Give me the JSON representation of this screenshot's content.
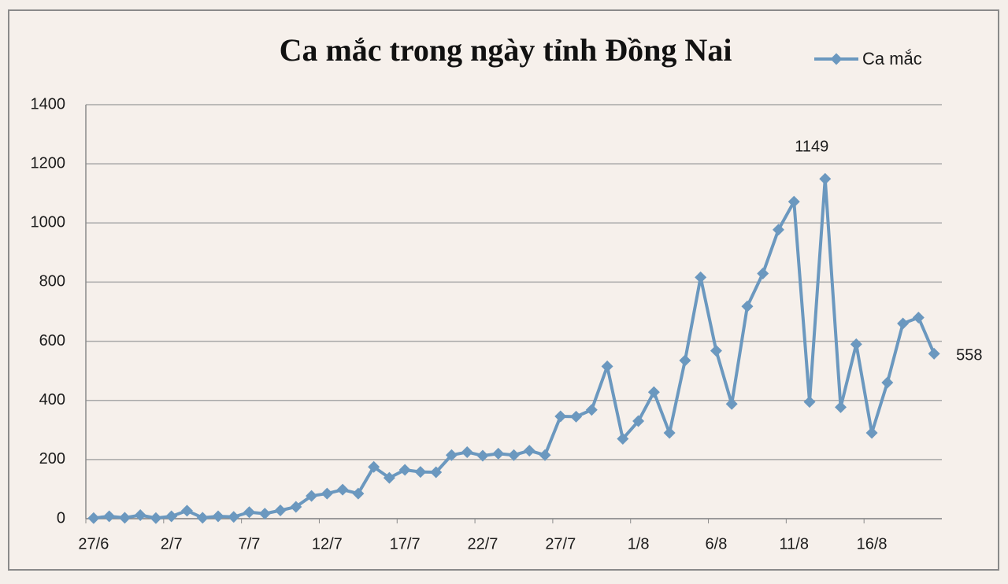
{
  "chart_data": {
    "type": "line",
    "title": "Ca mắc trong ngày tỉnh Đồng Nai",
    "categories": [
      "27/6",
      null,
      null,
      null,
      null,
      "2/7",
      null,
      null,
      null,
      null,
      "7/7",
      null,
      null,
      null,
      null,
      "12/7",
      null,
      null,
      null,
      null,
      "17/7",
      null,
      null,
      null,
      null,
      "22/7",
      null,
      null,
      null,
      null,
      "27/7",
      null,
      null,
      null,
      null,
      "1/8",
      null,
      null,
      null,
      null,
      "6/8",
      null,
      null,
      null,
      null,
      "11/8",
      null,
      null,
      null,
      null,
      "16/8",
      null,
      null,
      null,
      null
    ],
    "series": [
      {
        "name": "Ca mắc",
        "color": "#6b98bf",
        "values": [
          2,
          8,
          3,
          12,
          2,
          8,
          27,
          3,
          8,
          6,
          22,
          17,
          28,
          40,
          77,
          85,
          98,
          85,
          175,
          138,
          165,
          158,
          157,
          215,
          225,
          213,
          220,
          215,
          230,
          215,
          346,
          345,
          368,
          515,
          270,
          330,
          428,
          290,
          535,
          816,
          568,
          388,
          718,
          829,
          977,
          1072,
          395,
          1149,
          377,
          590,
          290,
          460,
          660,
          680,
          558
        ],
        "value_labels": [
          null,
          null,
          null,
          null,
          null,
          null,
          null,
          null,
          null,
          null,
          null,
          null,
          null,
          null,
          null,
          null,
          null,
          null,
          null,
          null,
          null,
          null,
          null,
          null,
          null,
          null,
          null,
          null,
          null,
          null,
          null,
          null,
          null,
          null,
          null,
          null,
          null,
          null,
          null,
          null,
          null,
          null,
          null,
          null,
          null,
          null,
          null,
          "1149",
          null,
          null,
          null,
          null,
          null,
          null,
          "558"
        ]
      }
    ],
    "ylim": [
      0,
      1400
    ],
    "yticks": [
      0,
      200,
      400,
      600,
      800,
      1000,
      1200,
      1400
    ],
    "grid": true,
    "legend": "top-right"
  }
}
